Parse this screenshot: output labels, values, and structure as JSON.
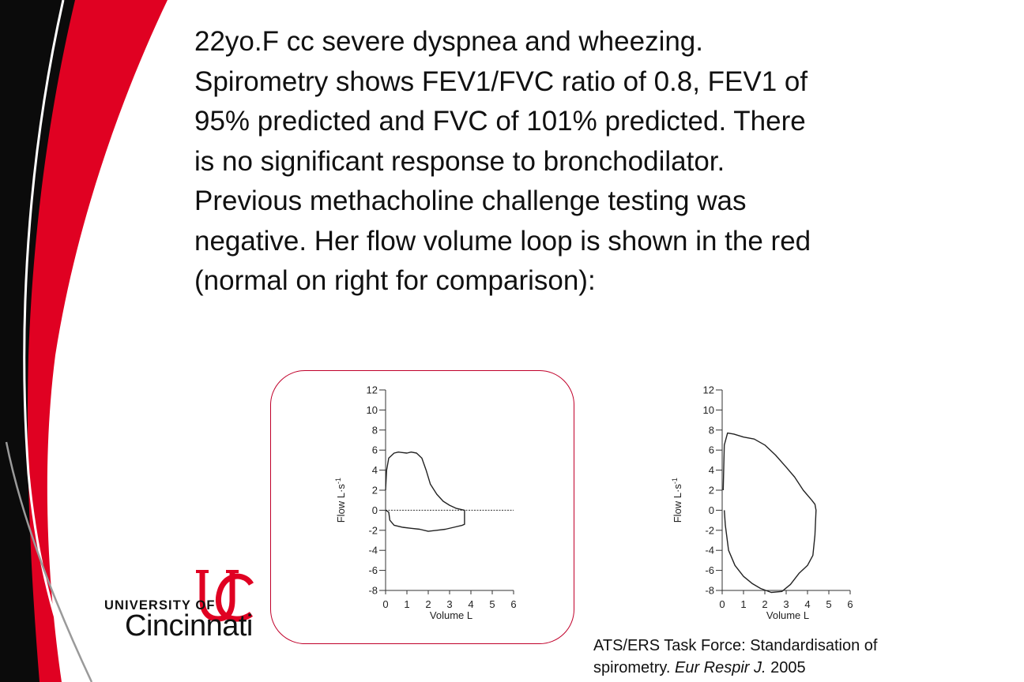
{
  "slide": {
    "lines": [
      "22yo.F cc severe dyspnea and wheezing.",
      "Spirometry shows FEV1/FVC ratio of 0.8, FEV1 of",
      "95% predicted and FVC of 101% predicted. There",
      "is no significant response to bronchodilator.",
      "Previous methacholine challenge testing was",
      "negative. Her flow volume loop is shown in the red",
      "(normal on right for comparison):"
    ]
  },
  "logo": {
    "university_of": "UNIVERSITY OF",
    "name": "Cincinnati",
    "brand_color": "#e00122"
  },
  "citation": {
    "text": "ATS/ERS Task Force: Standardisation of",
    "journal_prefix": "spirometry. ",
    "journal": "Eur Respir J.",
    "year": " 2005"
  },
  "theme": {
    "accent_red": "#e00122",
    "box_border": "#c0002a"
  },
  "chart_data": [
    {
      "type": "line",
      "id": "patient",
      "xlabel": "Volume L",
      "ylabel": "Flow L·s",
      "ylabel_superscript": "-1",
      "xlim": [
        0,
        6
      ],
      "ylim": [
        -8,
        12
      ],
      "x_ticks": [
        "0",
        "1",
        "2",
        "3",
        "4",
        "5",
        "6"
      ],
      "y_ticks": [
        "12",
        "10",
        "8",
        "6",
        "4",
        "2",
        "0",
        "-2",
        "-4",
        "-6",
        "-8"
      ],
      "x": [
        0,
        0.05,
        0.15,
        0.4,
        0.6,
        1.0,
        1.2,
        1.45,
        1.7,
        1.9,
        2.1,
        2.4,
        2.7,
        3.0,
        3.3,
        3.6,
        3.7,
        3.7,
        3.6,
        3.2,
        2.8,
        2.4,
        2.0,
        1.6,
        1.2,
        0.8,
        0.4,
        0.2,
        0.15,
        0.05,
        0
      ],
      "y": [
        2.0,
        4.0,
        5.2,
        5.7,
        5.8,
        5.7,
        5.8,
        5.7,
        5.2,
        4.0,
        2.6,
        1.6,
        0.9,
        0.5,
        0.2,
        0.05,
        0,
        -1.4,
        -1.5,
        -1.7,
        -1.9,
        -2.0,
        -2.1,
        -1.9,
        -1.8,
        -1.7,
        -1.5,
        -1.0,
        -0.2,
        -0.05,
        0
      ],
      "baseline_x": [
        0,
        6
      ],
      "baseline_y": [
        0,
        0
      ]
    },
    {
      "type": "line",
      "id": "normal",
      "xlabel": "Volume L",
      "ylabel": "Flow L·s",
      "ylabel_superscript": "-1",
      "xlim": [
        0,
        6
      ],
      "ylim": [
        -8,
        12
      ],
      "x_ticks": [
        "0",
        "1",
        "2",
        "3",
        "4",
        "5",
        "6"
      ],
      "y_ticks": [
        "12",
        "10",
        "8",
        "6",
        "4",
        "2",
        "0",
        "-2",
        "-4",
        "-6",
        "-8"
      ],
      "x": [
        0.05,
        0.1,
        0.25,
        0.55,
        1.0,
        1.5,
        2.0,
        2.5,
        3.0,
        3.4,
        3.8,
        4.2,
        4.35,
        4.4,
        4.35,
        4.25,
        4.0,
        3.6,
        3.2,
        2.8,
        2.3,
        1.8,
        1.4,
        1.0,
        0.6,
        0.3,
        0.15,
        0.1
      ],
      "y": [
        2.0,
        6.5,
        7.7,
        7.6,
        7.3,
        7.1,
        6.5,
        5.5,
        4.3,
        3.3,
        2.0,
        1.0,
        0.6,
        0.0,
        -2.5,
        -4.5,
        -5.5,
        -6.3,
        -7.4,
        -8.1,
        -8.2,
        -7.8,
        -7.3,
        -6.6,
        -5.5,
        -4.0,
        -1.5,
        0.0
      ]
    }
  ]
}
